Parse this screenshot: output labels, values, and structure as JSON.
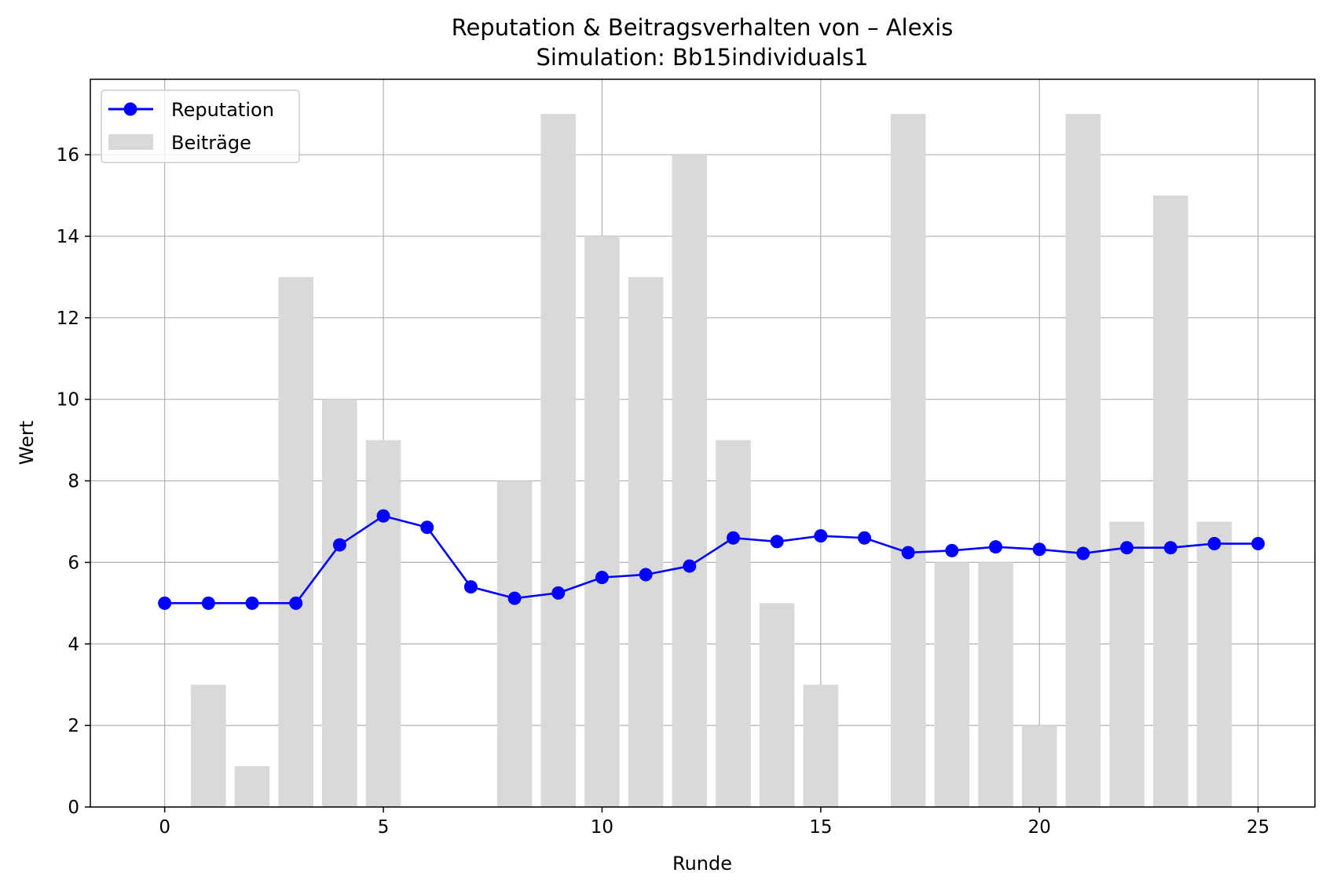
{
  "chart_data": {
    "type": "bar",
    "title": "Reputation & Beitragsverhalten von – Alexis",
    "subtitle": "Simulation: Bb15individuals1",
    "xlabel": "Runde",
    "ylabel": "Wert",
    "xlim": [
      -1.7,
      26.3
    ],
    "ylim": [
      0,
      17.85
    ],
    "xticks": [
      0,
      5,
      10,
      15,
      20,
      25
    ],
    "yticks": [
      0,
      2,
      4,
      6,
      8,
      10,
      12,
      14,
      16
    ],
    "grid": true,
    "legend_position": "top-left",
    "x": [
      0,
      1,
      2,
      3,
      4,
      5,
      6,
      7,
      8,
      9,
      10,
      11,
      12,
      13,
      14,
      15,
      16,
      17,
      18,
      19,
      20,
      21,
      22,
      23,
      24,
      25
    ],
    "series": [
      {
        "name": "Beiträge",
        "type": "bar",
        "color": "#d9d9d9",
        "values": [
          0,
          3,
          1,
          13,
          10,
          9,
          0,
          0,
          8,
          17,
          14,
          13,
          16,
          9,
          5,
          3,
          0,
          17,
          6,
          6,
          2,
          17,
          7,
          15,
          7,
          0
        ]
      },
      {
        "name": "Reputation",
        "type": "line",
        "color": "#0000ff",
        "marker": "circle",
        "values": [
          5.0,
          5.0,
          5.0,
          5.0,
          6.43,
          7.14,
          6.86,
          5.4,
          5.12,
          5.25,
          5.63,
          5.7,
          5.91,
          6.6,
          6.51,
          6.65,
          6.6,
          6.24,
          6.29,
          6.38,
          6.32,
          6.22,
          6.36,
          6.36,
          6.46,
          6.46
        ]
      }
    ]
  }
}
